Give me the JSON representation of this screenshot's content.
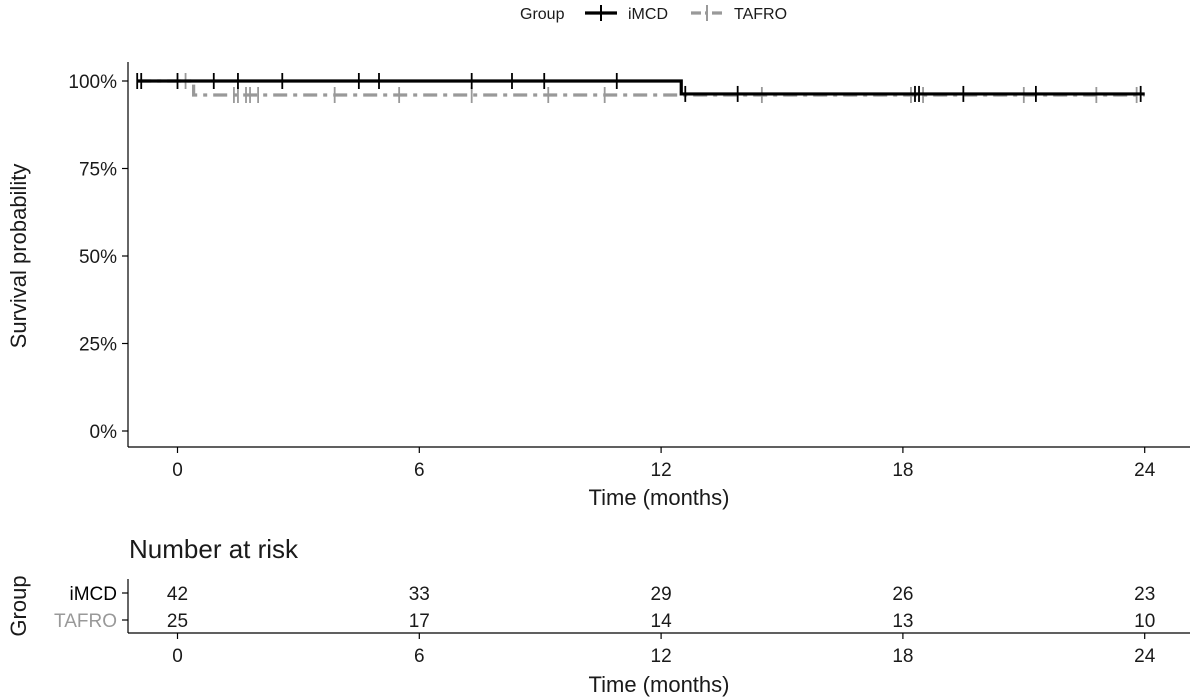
{
  "chart_data": [
    {
      "type": "line",
      "subtype": "kaplan-meier step",
      "legend": {
        "title": "Group",
        "position": "top",
        "entries": [
          "iMCD",
          "TAFRO"
        ]
      },
      "xlabel": "Time (months)",
      "ylabel": "Survival probability",
      "xlim": [
        -1,
        24.8
      ],
      "ylim": [
        0,
        1.05
      ],
      "xticks": [
        0,
        6,
        12,
        18,
        24
      ],
      "xtick_labels": [
        "0",
        "6",
        "12",
        "18",
        "24"
      ],
      "yticks": [
        0,
        0.25,
        0.5,
        0.75,
        1.0
      ],
      "ytick_labels": [
        "0%",
        "25%",
        "50%",
        "75%",
        "100%"
      ],
      "grid": false,
      "series": [
        {
          "name": "iMCD",
          "color": "#000000",
          "line_style": "solid",
          "steps": [
            {
              "x": -1.0,
              "y": 1.0
            },
            {
              "x": 12.5,
              "y": 0.963
            }
          ],
          "end_x": 24.0,
          "censor_times": [
            -1.0,
            -0.9,
            0.0,
            0.9,
            1.5,
            2.6,
            4.5,
            5.0,
            7.3,
            8.3,
            9.1,
            10.9,
            12.6,
            13.9,
            18.3,
            18.4,
            19.5,
            21.3,
            23.9
          ]
        },
        {
          "name": "TAFRO",
          "color": "#999999",
          "line_style": "dashdot",
          "steps": [
            {
              "x": -1.0,
              "y": 1.0
            },
            {
              "x": 0.4,
              "y": 0.96
            }
          ],
          "end_x": 24.0,
          "censor_times": [
            0.2,
            1.4,
            1.5,
            1.7,
            1.8,
            2.0,
            3.9,
            5.5,
            7.3,
            9.2,
            10.6,
            14.5,
            18.2,
            18.5,
            21.0,
            22.8,
            23.8
          ]
        }
      ]
    },
    {
      "type": "table",
      "title": "Number at risk",
      "ylabel": "Group",
      "xlabel": "Time (months)",
      "xticks": [
        0,
        6,
        12,
        18,
        24
      ],
      "xtick_labels": [
        "0",
        "6",
        "12",
        "18",
        "24"
      ],
      "rows": [
        {
          "label": "iMCD",
          "color": "#000000",
          "values": [
            42,
            33,
            29,
            26,
            23
          ]
        },
        {
          "label": "TAFRO",
          "color": "#999999",
          "values": [
            25,
            17,
            14,
            13,
            10
          ]
        }
      ]
    }
  ]
}
